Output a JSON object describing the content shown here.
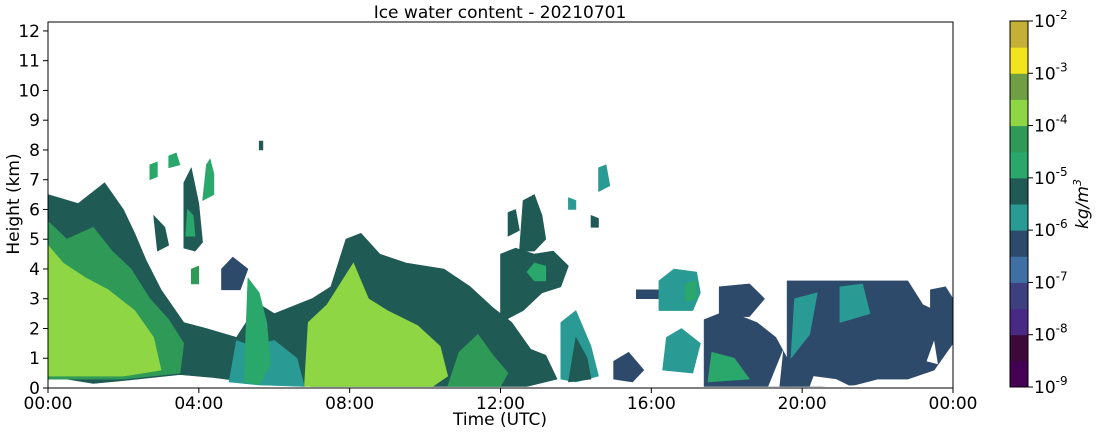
{
  "chart_data": {
    "type": "heatmap",
    "title": "Ice water content - 20210701",
    "xlabel": "Time (UTC)",
    "ylabel": "Height (km)",
    "xlim": [
      0,
      24
    ],
    "ylim": [
      0,
      12.3
    ],
    "x_tick_labels": [
      "00:00",
      "04:00",
      "08:00",
      "12:00",
      "16:00",
      "20:00",
      "00:00"
    ],
    "x_tick_hours": [
      0,
      4,
      8,
      12,
      16,
      20,
      24
    ],
    "y_ticks": [
      0,
      1,
      2,
      3,
      4,
      5,
      6,
      7,
      8,
      9,
      10,
      11,
      12
    ],
    "colorbar": {
      "label": "kg/m^3",
      "label_base": "kg/m",
      "label_exp": "3",
      "scale": "log",
      "tick_exponents": [
        -9,
        -8,
        -7,
        -6,
        -5,
        -4,
        -3,
        -2
      ],
      "tick_base": "10",
      "levels": [
        {
          "from": -9.0,
          "to": -8.5,
          "color": "#440154"
        },
        {
          "from": -8.5,
          "to": -8.0,
          "color": "#3b0a3a"
        },
        {
          "from": -8.0,
          "to": -7.5,
          "color": "#482a85"
        },
        {
          "from": -7.5,
          "to": -7.0,
          "color": "#3e3f7e"
        },
        {
          "from": -7.0,
          "to": -6.5,
          "color": "#3f6fa3"
        },
        {
          "from": -6.5,
          "to": -6.0,
          "color": "#2e4a6b"
        },
        {
          "from": -6.0,
          "to": -5.5,
          "color": "#2a9a94"
        },
        {
          "from": -5.5,
          "to": -5.0,
          "color": "#1f5a55"
        },
        {
          "from": -5.0,
          "to": -4.5,
          "color": "#2aa76b"
        },
        {
          "from": -4.5,
          "to": -4.0,
          "color": "#2f9a57"
        },
        {
          "from": -4.0,
          "to": -3.5,
          "color": "#8ed643"
        },
        {
          "from": -3.5,
          "to": -3.0,
          "color": "#6f9e45"
        },
        {
          "from": -3.0,
          "to": -2.5,
          "color": "#f2e51d"
        },
        {
          "from": -2.5,
          "to": -2.0,
          "color": "#c4b037"
        }
      ]
    },
    "regions": [
      {
        "level": -5.5,
        "points": [
          [
            0,
            0.3
          ],
          [
            0,
            6.5
          ],
          [
            0.8,
            6.2
          ],
          [
            1.5,
            6.9
          ],
          [
            2.0,
            6.0
          ],
          [
            2.3,
            5.2
          ],
          [
            2.6,
            4.3
          ],
          [
            3.0,
            3.3
          ],
          [
            3.6,
            2.2
          ],
          [
            4.2,
            2.0
          ],
          [
            5.0,
            1.7
          ],
          [
            5.3,
            2.3
          ],
          [
            5.5,
            2.9
          ],
          [
            6.0,
            2.5
          ],
          [
            7.0,
            3.0
          ],
          [
            7.5,
            3.4
          ],
          [
            7.9,
            5.0
          ],
          [
            8.3,
            5.2
          ],
          [
            8.8,
            4.5
          ],
          [
            9.5,
            4.2
          ],
          [
            10.5,
            4.0
          ],
          [
            11.2,
            3.4
          ],
          [
            11.8,
            2.7
          ],
          [
            12.3,
            2.2
          ],
          [
            12.8,
            1.3
          ],
          [
            13.2,
            1.1
          ],
          [
            13.5,
            0.3
          ],
          [
            12.7,
            0.05
          ],
          [
            11.0,
            0.05
          ],
          [
            9.0,
            0.05
          ],
          [
            7.0,
            0.05
          ],
          [
            5.3,
            0.2
          ],
          [
            4.4,
            0.35
          ],
          [
            3.5,
            0.45
          ],
          [
            2.0,
            0.25
          ],
          [
            1.2,
            0.15
          ],
          [
            0.5,
            0.3
          ]
        ]
      },
      {
        "level": -4.5,
        "points": [
          [
            0,
            0.3
          ],
          [
            0,
            5.6
          ],
          [
            0.5,
            5.0
          ],
          [
            1.2,
            5.4
          ],
          [
            1.7,
            4.6
          ],
          [
            2.2,
            4.0
          ],
          [
            2.7,
            3.0
          ],
          [
            3.2,
            2.3
          ],
          [
            3.6,
            1.5
          ],
          [
            3.5,
            0.5
          ],
          [
            2.0,
            0.3
          ],
          [
            1.0,
            0.3
          ]
        ]
      },
      {
        "level": -4.0,
        "points": [
          [
            0,
            0.4
          ],
          [
            0,
            4.8
          ],
          [
            0.4,
            4.2
          ],
          [
            1.0,
            3.7
          ],
          [
            1.6,
            3.3
          ],
          [
            2.3,
            2.6
          ],
          [
            2.8,
            1.7
          ],
          [
            3.0,
            0.6
          ],
          [
            2.0,
            0.4
          ],
          [
            1.0,
            0.4
          ]
        ]
      },
      {
        "level": -4.0,
        "points": [
          [
            6.8,
            0.05
          ],
          [
            6.9,
            2.2
          ],
          [
            7.4,
            2.8
          ],
          [
            7.8,
            3.6
          ],
          [
            8.1,
            4.2
          ],
          [
            8.5,
            3.0
          ],
          [
            9.0,
            2.6
          ],
          [
            9.8,
            2.1
          ],
          [
            10.4,
            1.4
          ],
          [
            10.6,
            0.4
          ],
          [
            10.2,
            0.05
          ],
          [
            8.5,
            0.05
          ]
        ]
      },
      {
        "level": -4.5,
        "points": [
          [
            10.6,
            0.05
          ],
          [
            10.9,
            1.2
          ],
          [
            11.4,
            1.8
          ],
          [
            11.8,
            1.1
          ],
          [
            12.2,
            0.5
          ],
          [
            12.0,
            0.05
          ]
        ]
      },
      {
        "level": -6.0,
        "points": [
          [
            4.8,
            0.2
          ],
          [
            5.0,
            1.6
          ],
          [
            5.4,
            1.4
          ],
          [
            6.0,
            1.6
          ],
          [
            6.6,
            1.0
          ],
          [
            6.8,
            0.05
          ],
          [
            5.6,
            0.1
          ]
        ]
      },
      {
        "level": -5.0,
        "points": [
          [
            5.2,
            0.2
          ],
          [
            5.3,
            3.7
          ],
          [
            5.6,
            3.2
          ],
          [
            5.8,
            2.2
          ],
          [
            5.9,
            0.8
          ],
          [
            5.6,
            0.1
          ]
        ]
      },
      {
        "level": -5.5,
        "points": [
          [
            12.0,
            2.2
          ],
          [
            12.0,
            4.5
          ],
          [
            12.4,
            4.7
          ],
          [
            12.9,
            4.5
          ],
          [
            13.4,
            4.6
          ],
          [
            13.8,
            4.1
          ],
          [
            13.6,
            3.4
          ],
          [
            13.1,
            3.2
          ],
          [
            12.6,
            2.6
          ]
        ]
      },
      {
        "level": -5.0,
        "points": [
          [
            12.7,
            3.9
          ],
          [
            12.9,
            4.2
          ],
          [
            13.2,
            4.1
          ],
          [
            13.2,
            3.6
          ],
          [
            12.9,
            3.6
          ]
        ]
      },
      {
        "level": -5.5,
        "points": [
          [
            12.5,
            4.6
          ],
          [
            12.6,
            6.3
          ],
          [
            12.9,
            6.5
          ],
          [
            13.1,
            5.8
          ],
          [
            13.2,
            5.0
          ],
          [
            12.9,
            4.6
          ]
        ]
      },
      {
        "level": -5.5,
        "points": [
          [
            12.2,
            5.1
          ],
          [
            12.2,
            5.9
          ],
          [
            12.4,
            6.0
          ],
          [
            12.5,
            5.3
          ]
        ]
      },
      {
        "level": -6.0,
        "points": [
          [
            13.8,
            6.0
          ],
          [
            13.8,
            6.4
          ],
          [
            14.0,
            6.3
          ],
          [
            14.0,
            6.0
          ]
        ]
      },
      {
        "level": -5.5,
        "points": [
          [
            14.4,
            5.4
          ],
          [
            14.4,
            5.8
          ],
          [
            14.6,
            5.7
          ],
          [
            14.6,
            5.4
          ]
        ]
      },
      {
        "level": -6.0,
        "points": [
          [
            14.6,
            6.6
          ],
          [
            14.6,
            7.4
          ],
          [
            14.8,
            7.5
          ],
          [
            14.9,
            6.8
          ]
        ]
      },
      {
        "level": -5.5,
        "points": [
          [
            3.6,
            4.7
          ],
          [
            3.6,
            6.9
          ],
          [
            3.8,
            7.4
          ],
          [
            4.0,
            6.2
          ],
          [
            4.1,
            4.9
          ],
          [
            3.9,
            4.6
          ]
        ]
      },
      {
        "level": -5.0,
        "points": [
          [
            3.65,
            5.1
          ],
          [
            3.7,
            6.0
          ],
          [
            3.85,
            5.8
          ],
          [
            3.9,
            5.1
          ]
        ]
      },
      {
        "level": -5.0,
        "points": [
          [
            4.1,
            6.3
          ],
          [
            4.2,
            7.5
          ],
          [
            4.3,
            7.7
          ],
          [
            4.4,
            7.2
          ],
          [
            4.4,
            6.5
          ]
        ]
      },
      {
        "level": -5.0,
        "points": [
          [
            3.2,
            7.4
          ],
          [
            3.2,
            7.8
          ],
          [
            3.4,
            7.9
          ],
          [
            3.5,
            7.5
          ]
        ]
      },
      {
        "level": -5.0,
        "points": [
          [
            2.7,
            7.0
          ],
          [
            2.7,
            7.5
          ],
          [
            2.9,
            7.6
          ],
          [
            2.9,
            7.1
          ]
        ]
      },
      {
        "level": -5.5,
        "points": [
          [
            2.9,
            4.6
          ],
          [
            2.8,
            5.8
          ],
          [
            3.1,
            5.4
          ],
          [
            3.2,
            4.8
          ]
        ]
      },
      {
        "level": -4.5,
        "points": [
          [
            3.8,
            3.5
          ],
          [
            3.8,
            4.0
          ],
          [
            4.0,
            4.1
          ],
          [
            4.0,
            3.5
          ]
        ]
      },
      {
        "level": -5.5,
        "points": [
          [
            5.6,
            8.0
          ],
          [
            5.6,
            8.3
          ],
          [
            5.7,
            8.3
          ],
          [
            5.7,
            8.0
          ]
        ]
      },
      {
        "level": -6.5,
        "points": [
          [
            4.6,
            3.3
          ],
          [
            4.6,
            4.0
          ],
          [
            4.9,
            4.4
          ],
          [
            5.3,
            4.0
          ],
          [
            5.1,
            3.3
          ]
        ]
      },
      {
        "level": -6.0,
        "points": [
          [
            13.6,
            0.3
          ],
          [
            13.6,
            2.2
          ],
          [
            14.0,
            2.6
          ],
          [
            14.4,
            1.4
          ],
          [
            14.6,
            0.4
          ],
          [
            14.0,
            0.2
          ]
        ]
      },
      {
        "level": -5.5,
        "points": [
          [
            13.8,
            0.2
          ],
          [
            14.0,
            1.7
          ],
          [
            14.3,
            1.0
          ],
          [
            14.4,
            0.3
          ]
        ]
      },
      {
        "level": -6.5,
        "points": [
          [
            15.0,
            0.3
          ],
          [
            15.0,
            0.9
          ],
          [
            15.4,
            1.2
          ],
          [
            15.8,
            0.6
          ],
          [
            15.5,
            0.2
          ]
        ]
      },
      {
        "level": -6.0,
        "points": [
          [
            16.3,
            0.6
          ],
          [
            16.4,
            1.7
          ],
          [
            16.8,
            2.0
          ],
          [
            17.3,
            1.5
          ],
          [
            17.1,
            0.5
          ]
        ]
      },
      {
        "level": -6.5,
        "points": [
          [
            15.6,
            3.0
          ],
          [
            15.6,
            3.3
          ],
          [
            16.2,
            3.3
          ],
          [
            16.2,
            3.0
          ]
        ]
      },
      {
        "level": -6.0,
        "points": [
          [
            16.2,
            2.6
          ],
          [
            16.2,
            3.6
          ],
          [
            16.6,
            4.0
          ],
          [
            17.2,
            3.9
          ],
          [
            17.3,
            3.2
          ],
          [
            17.1,
            2.6
          ]
        ]
      },
      {
        "level": -5.0,
        "points": [
          [
            16.9,
            2.9
          ],
          [
            16.9,
            3.5
          ],
          [
            17.2,
            3.6
          ],
          [
            17.2,
            3.0
          ]
        ]
      },
      {
        "level": -6.5,
        "points": [
          [
            17.4,
            0.05
          ],
          [
            17.4,
            2.3
          ],
          [
            18.0,
            2.6
          ],
          [
            18.8,
            2.2
          ],
          [
            19.3,
            1.7
          ],
          [
            19.6,
            1.0
          ],
          [
            19.6,
            0.05
          ],
          [
            18.5,
            0.05
          ]
        ]
      },
      {
        "level": -5.0,
        "points": [
          [
            17.5,
            0.2
          ],
          [
            17.6,
            1.2
          ],
          [
            18.2,
            1.0
          ],
          [
            18.6,
            0.3
          ]
        ]
      },
      {
        "level": -6.5,
        "points": [
          [
            17.8,
            2.4
          ],
          [
            17.8,
            3.4
          ],
          [
            18.6,
            3.5
          ],
          [
            19.0,
            3.0
          ],
          [
            18.6,
            2.4
          ]
        ]
      },
      {
        "level": -6.5,
        "points": [
          [
            19.6,
            0.05
          ],
          [
            19.6,
            3.6
          ],
          [
            22.8,
            3.6
          ],
          [
            23.2,
            2.8
          ],
          [
            23.7,
            2.5
          ],
          [
            24.0,
            2.8
          ],
          [
            24.0,
            1.5
          ],
          [
            23.5,
            0.6
          ],
          [
            22.8,
            0.3
          ],
          [
            22.0,
            0.3
          ],
          [
            21.4,
            0.1
          ],
          [
            20.5,
            0.05
          ]
        ]
      },
      {
        "level": -6.0,
        "points": [
          [
            19.7,
            1.0
          ],
          [
            19.8,
            3.0
          ],
          [
            20.4,
            3.2
          ],
          [
            20.2,
            1.8
          ]
        ]
      },
      {
        "level": -6.0,
        "points": [
          [
            21.0,
            2.2
          ],
          [
            21.0,
            3.4
          ],
          [
            21.6,
            3.5
          ],
          [
            21.8,
            2.5
          ]
        ]
      },
      {
        "level": -6.5,
        "points": [
          [
            23.4,
            2.2
          ],
          [
            23.4,
            3.3
          ],
          [
            23.8,
            3.4
          ],
          [
            24.0,
            3.0
          ],
          [
            24.0,
            2.4
          ]
        ]
      }
    ],
    "gaps": [
      [
        [
          19.1,
          0.05
        ],
        [
          19.5,
          1.3
        ],
        [
          19.4,
          0.05
        ]
      ],
      [
        [
          20.2,
          0.05
        ],
        [
          20.3,
          0.4
        ],
        [
          20.9,
          0.3
        ],
        [
          21.3,
          0.05
        ]
      ],
      [
        [
          23.3,
          0.9
        ],
        [
          23.5,
          1.6
        ],
        [
          23.6,
          0.8
        ]
      ]
    ]
  }
}
